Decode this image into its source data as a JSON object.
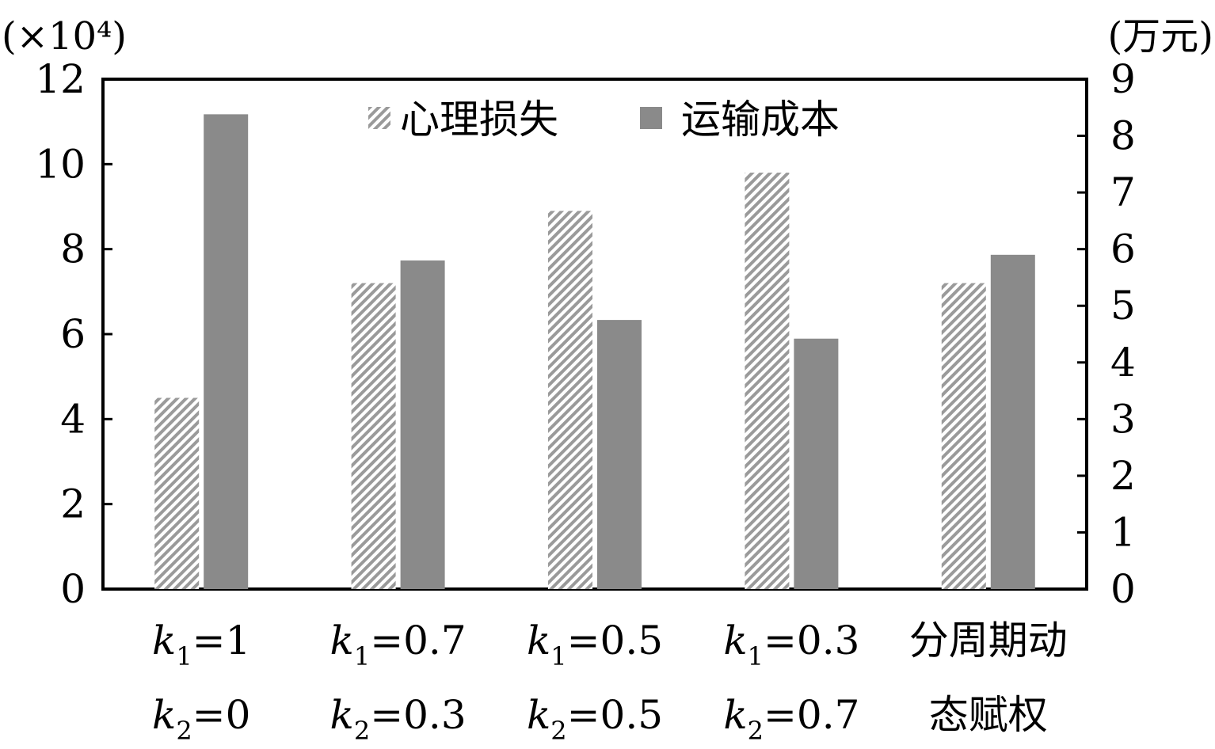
{
  "chart_data": {
    "type": "bar",
    "left_axis_unit": "(×10⁴)",
    "right_axis_unit": "(万元)",
    "left_ylim": [
      0,
      12
    ],
    "left_ticks": [
      "0",
      "2",
      "4",
      "6",
      "8",
      "10",
      "12"
    ],
    "right_ylim": [
      0,
      9
    ],
    "right_ticks": [
      "0",
      "1",
      "2",
      "3",
      "4",
      "5",
      "6",
      "7",
      "8",
      "9"
    ],
    "legend_position": "top-center",
    "categories": [
      {
        "line1_sym": "k",
        "line1_sub": "1",
        "line1_rest": "=1",
        "line2_sym": "k",
        "line2_sub": "2",
        "line2_rest": "=0"
      },
      {
        "line1_sym": "k",
        "line1_sub": "1",
        "line1_rest": "=0.7",
        "line2_sym": "k",
        "line2_sub": "2",
        "line2_rest": "=0.3"
      },
      {
        "line1_sym": "k",
        "line1_sub": "1",
        "line1_rest": "=0.5",
        "line2_sym": "k",
        "line2_sub": "2",
        "line2_rest": "=0.5"
      },
      {
        "line1_sym": "k",
        "line1_sub": "1",
        "line1_rest": "=0.3",
        "line2_sym": "k",
        "line2_sub": "2",
        "line2_rest": "=0.7"
      },
      {
        "text1": "分周期动",
        "text2": "态赋权"
      }
    ],
    "series": [
      {
        "name": "心理损失",
        "axis": "left",
        "pattern": "hatch",
        "color": "#888888",
        "values": [
          4.5,
          7.2,
          8.9,
          9.8,
          7.2
        ]
      },
      {
        "name": "运输成本",
        "axis": "right",
        "pattern": "solid",
        "color": "#8a8a8a",
        "values": [
          8.38,
          5.8,
          4.75,
          4.42,
          5.9
        ]
      }
    ]
  }
}
